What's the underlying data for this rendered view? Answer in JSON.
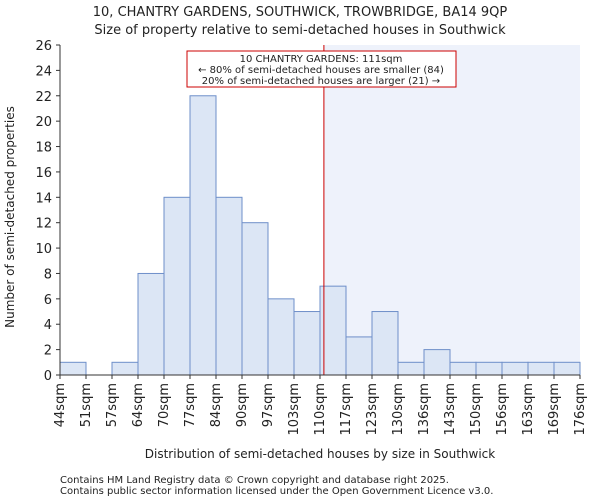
{
  "chart_data": {
    "type": "bar",
    "title": "10, CHANTRY GARDENS, SOUTHWICK, TROWBRIDGE, BA14 9QP",
    "subtitle": "Size of property relative to semi-detached houses in Southwick",
    "xlabel": "Distribution of semi-detached houses by size in Southwick",
    "ylabel": "Number of semi-detached properties",
    "tick_labels": [
      "44sqm",
      "51sqm",
      "57sqm",
      "64sqm",
      "70sqm",
      "77sqm",
      "84sqm",
      "90sqm",
      "97sqm",
      "103sqm",
      "110sqm",
      "117sqm",
      "123sqm",
      "130sqm",
      "136sqm",
      "143sqm",
      "150sqm",
      "156sqm",
      "163sqm",
      "169sqm",
      "176sqm"
    ],
    "values": [
      1,
      0,
      1,
      8,
      14,
      22,
      14,
      12,
      6,
      5,
      7,
      3,
      5,
      1,
      2,
      1,
      1,
      1,
      1,
      1
    ],
    "ylim": [
      0,
      26
    ],
    "yticks": [
      0,
      2,
      4,
      6,
      8,
      10,
      12,
      14,
      16,
      18,
      20,
      22,
      24,
      26
    ],
    "grid": false,
    "marker": {
      "value_sqm": 111,
      "bin_position": 10.15,
      "color": "#cc0000"
    },
    "annotation": {
      "line1": "10 CHANTRY GARDENS: 111sqm",
      "line2": "← 80% of semi-detached houses are smaller (84)",
      "line3": "20% of semi-detached houses are larger (21) →"
    },
    "colors": {
      "bar_fill": "#dce6f5",
      "bar_stroke": "#6e8fc9",
      "highlight_region": "#eef2fb",
      "axis": "#333333"
    }
  },
  "footer": {
    "line1": "Contains HM Land Registry data © Crown copyright and database right 2025.",
    "line2": "Contains public sector information licensed under the Open Government Licence v3.0."
  }
}
